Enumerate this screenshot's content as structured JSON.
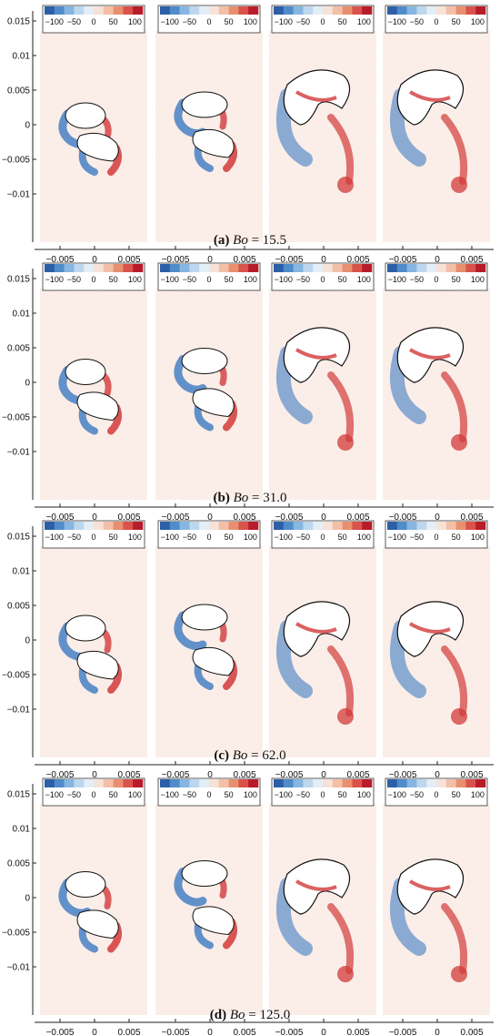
{
  "colorbar": {
    "tick_labels": [
      "−100",
      "−50",
      "0",
      "50",
      "100"
    ],
    "colors": [
      "#2c5fa8",
      "#4f8cc9",
      "#86b6e1",
      "#bcd7ee",
      "#e3eef7",
      "#f7e2d8",
      "#f3bfa6",
      "#e88f6f",
      "#d9534b",
      "#b81c2a"
    ]
  },
  "axes": {
    "y_tick_labels": [
      "0.015",
      "0.01",
      "0.005",
      "0",
      "−0.005",
      "−0.01"
    ],
    "x_tick_labels": [
      "−0.005",
      "0",
      "0.005"
    ]
  },
  "colors": {
    "negative": "#2f72c0",
    "positive": "#d23a3a",
    "background": "#fbeee9",
    "bubble": "#ffffff"
  },
  "rows": [
    {
      "label": "(a)",
      "symbol": "Bo",
      "value": "= 15.5"
    },
    {
      "label": "(b)",
      "symbol": "Bo",
      "value": "= 31.0"
    },
    {
      "label": "(c)",
      "symbol": "Bo",
      "value": "= 62.0"
    },
    {
      "label": "(d)",
      "symbol": "Bo",
      "value": "= 125.0"
    }
  ]
}
